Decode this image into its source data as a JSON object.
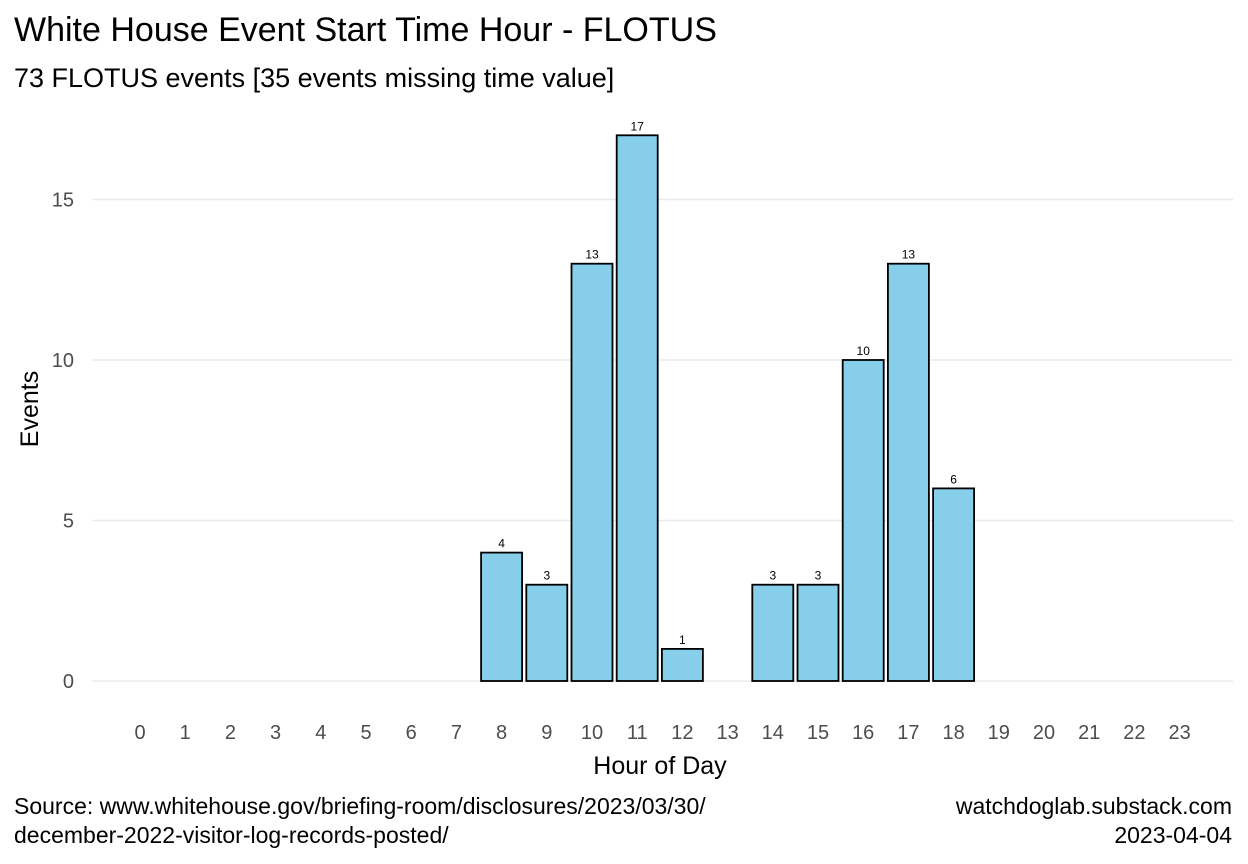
{
  "title": "White House Event Start Time Hour - FLOTUS",
  "subtitle": "73 FLOTUS events [35 events missing time value]",
  "caption_left": [
    "Source: www.whitehouse.gov/briefing-room/disclosures/2023/03/30/",
    "december-2022-visitor-log-records-posted/"
  ],
  "caption_right": [
    "watchdoglab.substack.com",
    "2023-04-04"
  ],
  "colors": {
    "bar_fill": "#87ceeb",
    "bar_stroke": "#000000",
    "grid": "#ebebeb",
    "tick_text": "#4d4d4d"
  },
  "chart_data": {
    "type": "bar",
    "title": "White House Event Start Time Hour - FLOTUS",
    "subtitle": "73 FLOTUS events [35 events missing time value]",
    "xlabel": "Hour of Day",
    "ylabel": "Events",
    "categories": [
      "0",
      "1",
      "2",
      "3",
      "4",
      "5",
      "6",
      "7",
      "8",
      "9",
      "10",
      "11",
      "12",
      "13",
      "14",
      "15",
      "16",
      "17",
      "18",
      "19",
      "20",
      "21",
      "22",
      "23"
    ],
    "values": [
      0,
      0,
      0,
      0,
      0,
      0,
      0,
      0,
      4,
      3,
      13,
      17,
      1,
      0,
      3,
      3,
      10,
      13,
      6,
      0,
      0,
      0,
      0,
      0
    ],
    "data_labels": [
      "",
      "",
      "",
      "",
      "",
      "",
      "",
      "",
      "4",
      "3",
      "13",
      "17",
      "1",
      "",
      "3",
      "3",
      "10",
      "13",
      "6",
      "",
      "",
      "",
      "",
      ""
    ],
    "y_ticks": [
      0,
      5,
      10,
      15
    ],
    "ylim": [
      0,
      17
    ],
    "grid": true,
    "legend": "none"
  }
}
